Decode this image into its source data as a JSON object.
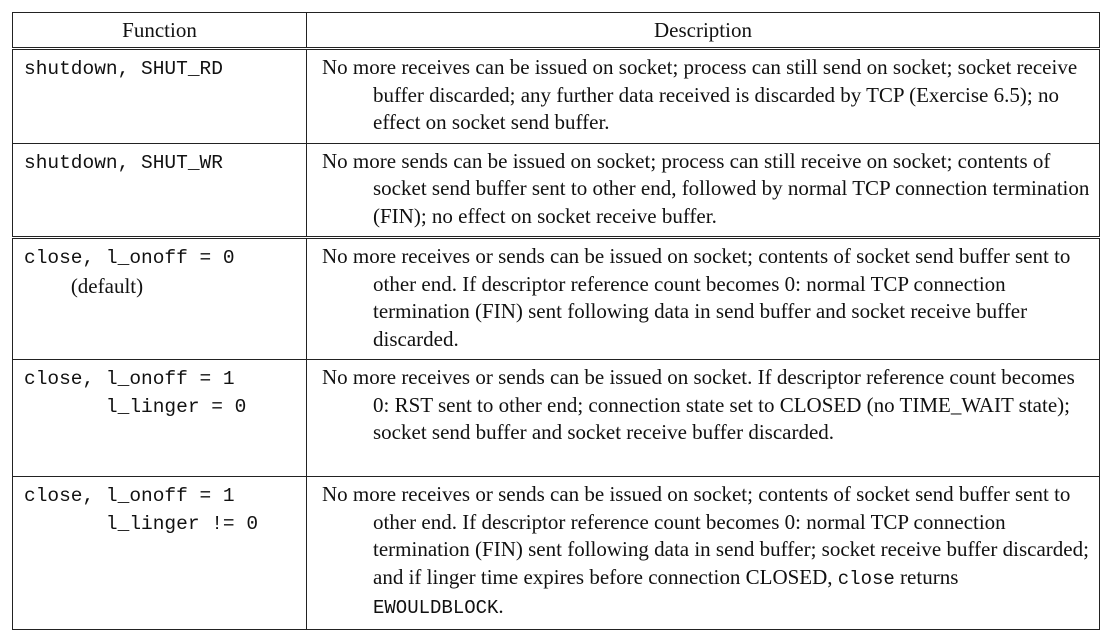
{
  "table": {
    "headers": [
      "Function",
      "Description"
    ],
    "rows": [
      {
        "fn_lines": [
          "shutdown, SHUT_RD"
        ],
        "desc": "No more receives can be issued on socket; process can still send on socket; socket receive buffer discarded; any further data received is discarded by TCP (Exercise 6.5); no effect on socket send buffer."
      },
      {
        "fn_lines": [
          "shutdown, SHUT_WR"
        ],
        "desc": "No more sends can be issued on socket; process can still receive on socket; contents of socket send buffer sent to other end, followed by normal TCP connection termination (FIN); no effect on socket receive buffer."
      },
      {
        "fn_lines": [
          "close, l_onoff = 0"
        ],
        "fn_note": "(default)",
        "desc": "No more receives or sends can be issued on socket; contents of socket send buffer sent to other end.  If descriptor reference count becomes 0: normal TCP connection termination (FIN) sent following data in send buffer and socket receive buffer discarded."
      },
      {
        "fn_lines": [
          "close, l_onoff = 1",
          "       l_linger = 0"
        ],
        "desc": "No more receives or sends can be issued on socket.  If descriptor reference count becomes 0: RST sent to other end; connection state set to CLOSED (no TIME_WAIT state); socket send buffer and socket receive buffer discarded."
      },
      {
        "fn_lines": [
          "close, l_onoff = 1",
          "       l_linger != 0"
        ],
        "desc": "No more receives or sends can be issued on socket; contents of socket send buffer sent to other end.  If descriptor reference count becomes 0: normal TCP connection termination (FIN) sent following data in send buffer; socket receive buffer discarded; and if linger time expires before connection CLOSED,",
        "desc_code1": "close",
        "desc_mid": " returns ",
        "desc_code2": "EWOULDBLOCK",
        "desc_end": "."
      }
    ]
  }
}
